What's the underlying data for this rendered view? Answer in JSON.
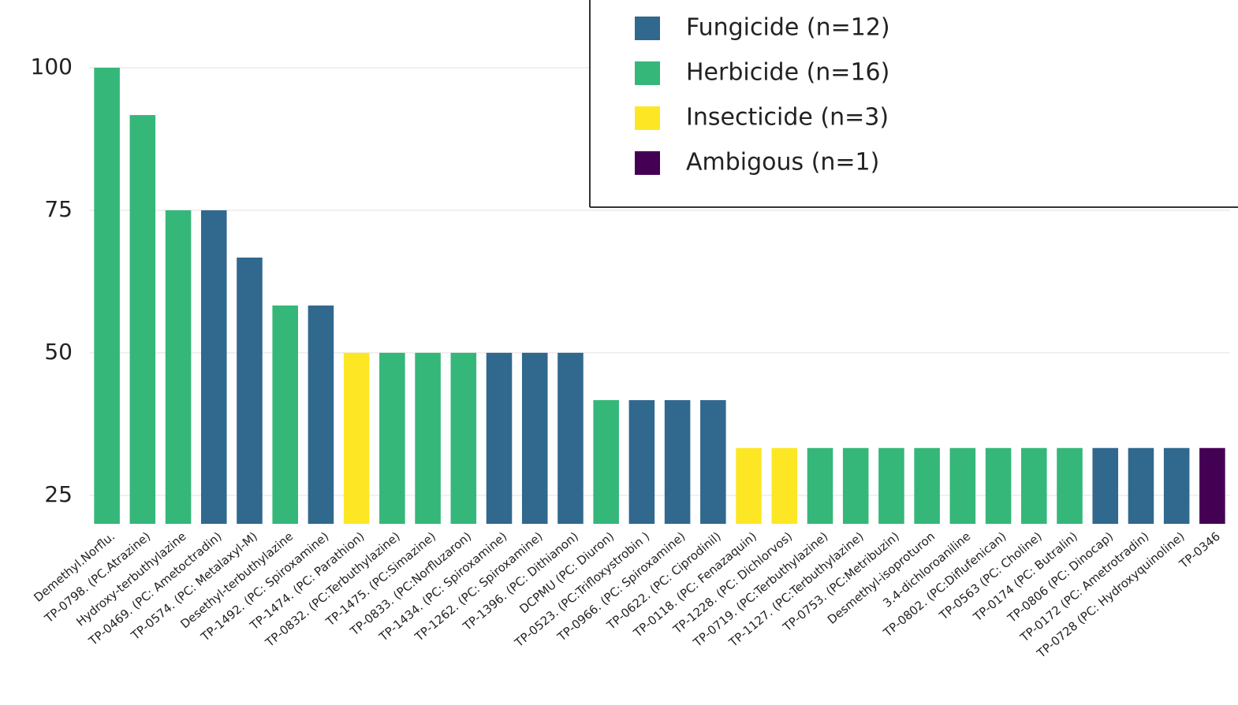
{
  "chart_data": {
    "type": "bar",
    "categories": [
      "Demethyl.Norflu.",
      "TP-0798. (PC.Atrazine)",
      "Hydroxy-terbuthylazine",
      "TP-0469. (PC: Ametoctradin)",
      "TP-0574. (PC: Metalaxyl-M)",
      "Desethyl-terbuthylazine",
      "TP-1492. (PC: Spiroxamine)",
      "TP-1474. (PC: Parathion)",
      "TP-0832. (PC:Terbuthylazine)",
      "TP-1475. (PC:Simazine)",
      "TP-0833. (PC:Norfluzaron)",
      "TP-1434. (PC: Spiroxamine)",
      "TP-1262. (PC: Spiroxamine)",
      "TP-1396. (PC: Dithianon)",
      "DCPMU (PC: Diuron)",
      "TP-0523. (PC:Trifloxystrobin )",
      "TP-0966. (PC: Spiroxamine)",
      "TP-0622. (PC: Ciprodinil)",
      "TP-0118. (PC: Fenazaquin)",
      "TP-1228. (PC: Dichlorvos)",
      "TP-0719. (PC:Terbuthylazine)",
      "TP-1127. (PC:Terbuthylazine)",
      "TP-0753. (PC:Metribuzin)",
      "Desmethyl-isoproturon",
      "3.4-dichloroaniline",
      "TP-0802. (PC:Diflufenican)",
      "TP-0563 (PC: Choline)",
      "TP-0174 (PC: Butralin)",
      "TP-0806 (PC: Dinocap)",
      "TP-0172 (PC: Ametrotradin)",
      "TP-0728 (PC: Hydroxyquinoline)",
      "TP-0346"
    ],
    "series": [
      {
        "name": "Fungicide (n=12)",
        "color": "#31688e",
        "values": [
          null,
          null,
          null,
          75,
          66.7,
          null,
          58.3,
          null,
          null,
          null,
          null,
          50,
          50,
          50,
          null,
          41.7,
          41.7,
          41.7,
          null,
          null,
          null,
          null,
          null,
          null,
          null,
          null,
          null,
          null,
          33.3,
          33.3,
          33.3,
          null
        ]
      },
      {
        "name": "Herbicide (n=16)",
        "color": "#35b779",
        "values": [
          100,
          91.7,
          75,
          null,
          null,
          58.3,
          null,
          null,
          50,
          50,
          50,
          null,
          null,
          null,
          41.7,
          null,
          null,
          null,
          null,
          null,
          33.3,
          33.3,
          33.3,
          33.3,
          33.3,
          33.3,
          33.3,
          33.3,
          null,
          null,
          null,
          null
        ]
      },
      {
        "name": "Insecticide (n=3)",
        "color": "#fde725",
        "values": [
          null,
          null,
          null,
          null,
          null,
          null,
          null,
          50,
          null,
          null,
          null,
          null,
          null,
          null,
          null,
          null,
          null,
          null,
          33.3,
          33.3,
          null,
          null,
          null,
          null,
          null,
          null,
          null,
          null,
          null,
          null,
          null,
          null
        ]
      },
      {
        "name": "Ambigous (n=1)",
        "color": "#440154",
        "values": [
          null,
          null,
          null,
          null,
          null,
          null,
          null,
          null,
          null,
          null,
          null,
          null,
          null,
          null,
          null,
          null,
          null,
          null,
          null,
          null,
          null,
          null,
          null,
          null,
          null,
          null,
          null,
          null,
          null,
          null,
          null,
          33.3
        ]
      }
    ],
    "ylim": [
      20,
      100
    ],
    "yticks": [
      25,
      50,
      75,
      100
    ],
    "grid": true
  }
}
